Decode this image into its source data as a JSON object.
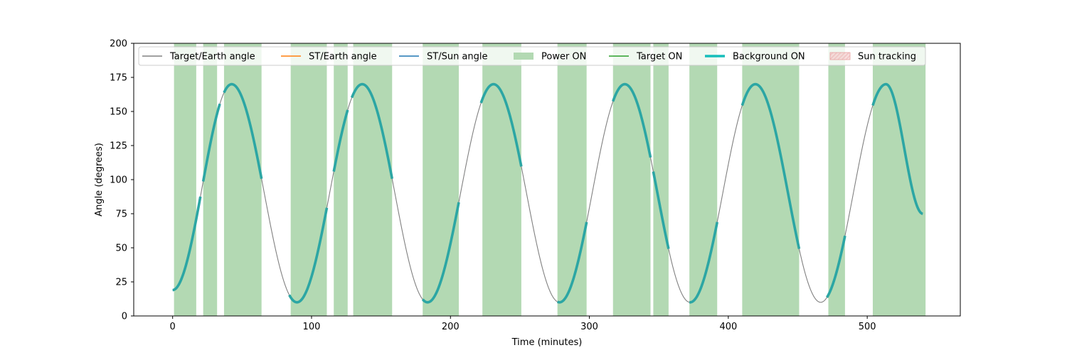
{
  "chart_data": {
    "type": "line",
    "title": "",
    "xlabel": "Time (minutes)",
    "ylabel": "Angle (degrees)",
    "xlim": [
      -28,
      567
    ],
    "ylim": [
      0,
      200
    ],
    "xticks": [
      0,
      100,
      200,
      300,
      400,
      500
    ],
    "yticks": [
      0,
      25,
      50,
      75,
      100,
      125,
      150,
      175,
      200
    ],
    "grid": false,
    "legend_placement": "top",
    "legend": [
      {
        "label": "Target/Earth angle",
        "kind": "line",
        "color": "#808080"
      },
      {
        "label": "ST/Earth angle",
        "kind": "line",
        "color": "#ff7f0e"
      },
      {
        "label": "ST/Sun angle",
        "kind": "line",
        "color": "#1f77b4"
      },
      {
        "label": "Power ON",
        "kind": "patch",
        "color": "#b3d9b3"
      },
      {
        "label": "Target ON",
        "kind": "line",
        "color": "#2ca02c"
      },
      {
        "label": "Background ON",
        "kind": "thickline",
        "color": "#17bebb"
      },
      {
        "label": "Sun tracking",
        "kind": "hatch",
        "color": "#f4cccc"
      }
    ],
    "target_earth_angle": {
      "name": "Target/Earth angle",
      "color": "#808080",
      "x": [
        0,
        42.5,
        89.5,
        136.5,
        183.5,
        231,
        278.5,
        325.5,
        372.5,
        419.5,
        466.5,
        513.5,
        540
      ],
      "y": [
        19,
        170,
        10,
        170,
        10,
        170,
        10,
        170,
        10,
        170,
        10,
        170,
        75
      ]
    },
    "power_on_intervals": {
      "name": "Power ON",
      "color": "#b3d9b3",
      "ranges": [
        [
          1,
          17
        ],
        [
          22,
          32
        ],
        [
          37,
          64
        ],
        [
          85,
          111
        ],
        [
          116,
          126
        ],
        [
          130,
          158
        ],
        [
          180,
          206
        ],
        [
          223,
          251
        ],
        [
          277,
          298
        ],
        [
          317,
          344
        ],
        [
          346,
          357
        ],
        [
          372,
          392
        ],
        [
          410,
          451
        ],
        [
          472,
          484
        ],
        [
          504,
          542
        ]
      ]
    },
    "background_on_intervals": {
      "name": "Background ON",
      "color": "#2ca6a4",
      "ranges": [
        [
          0,
          20
        ],
        [
          22,
          34
        ],
        [
          37,
          64
        ],
        [
          84,
          111
        ],
        [
          116,
          126
        ],
        [
          129,
          158
        ],
        [
          180,
          206
        ],
        [
          222,
          251
        ],
        [
          277,
          298
        ],
        [
          317,
          344
        ],
        [
          346,
          357
        ],
        [
          372,
          392
        ],
        [
          410,
          451
        ],
        [
          471,
          484
        ],
        [
          504,
          542
        ]
      ]
    }
  }
}
